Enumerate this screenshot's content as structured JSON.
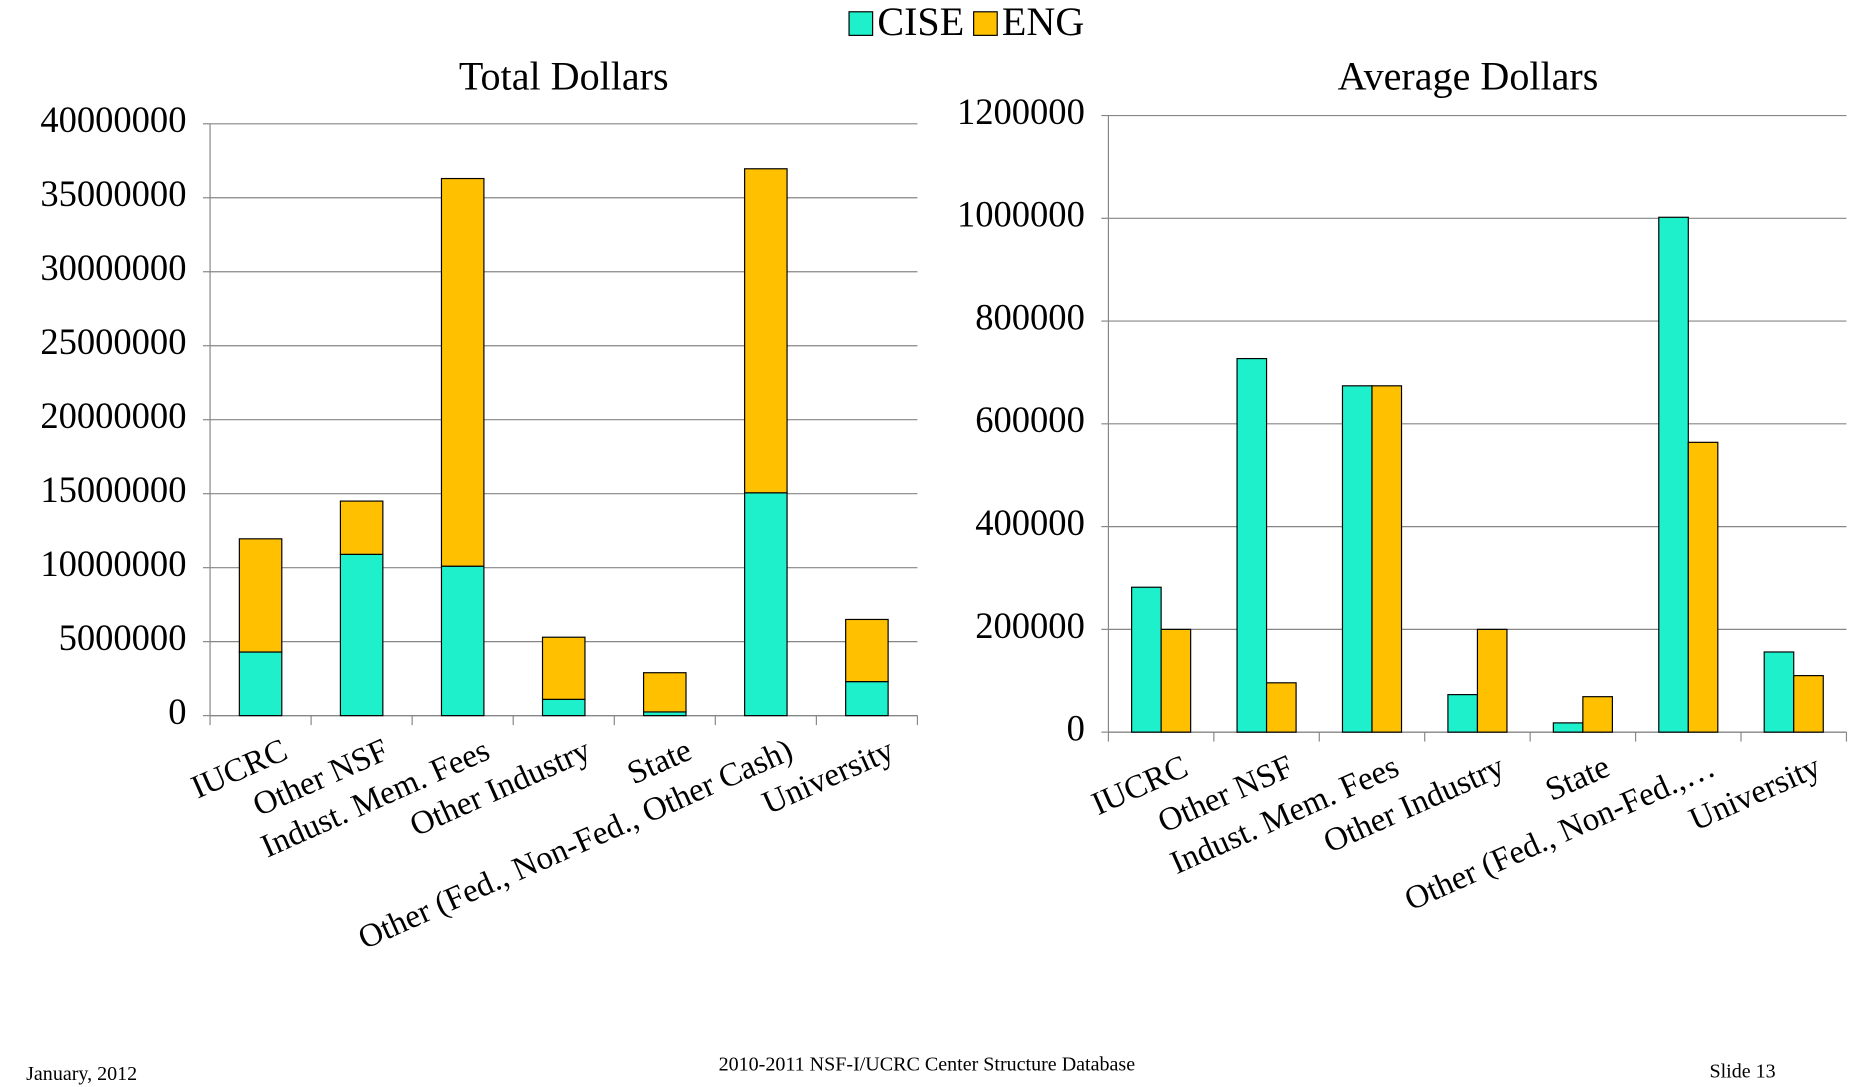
{
  "legend": {
    "items": [
      {
        "name": "CISE",
        "color": "#1ff0cc"
      },
      {
        "name": "ENG",
        "color": "#ffc000"
      }
    ]
  },
  "chart_data": [
    {
      "type": "bar",
      "stacked": true,
      "title": "Total Dollars",
      "categories": [
        "IUCRC",
        "Other NSF",
        "Indust. Mem. Fees",
        "Other Industry",
        "State",
        "Other (Fed., Non-Fed., Other Cash)",
        "University"
      ],
      "series": [
        {
          "color": "#1ff0cc",
          "values": [
            4300000,
            10900000,
            10100000,
            1100000,
            250000,
            15060000,
            2300000
          ]
        },
        {
          "color": "#ffc000",
          "values": [
            7650000,
            3600000,
            26200000,
            4200000,
            2650000,
            21900000,
            4200000
          ]
        }
      ],
      "ylim": [
        0,
        40000000
      ],
      "yticks": [
        0,
        5000000,
        10000000,
        15000000,
        20000000,
        25000000,
        30000000,
        35000000,
        40000000
      ],
      "grid": true
    },
    {
      "type": "bar",
      "stacked": false,
      "title": "Average Dollars",
      "categories": [
        "IUCRC",
        "Other NSF",
        "Indust. Mem. Fees",
        "Other Industry",
        "State",
        "Other (Fed., Non-Fed.,…",
        "University"
      ],
      "series": [
        {
          "color": "#1ff0cc",
          "values": [
            282000,
            727000,
            674000,
            73000,
            18000,
            1002000,
            156000
          ]
        },
        {
          "color": "#ffc000",
          "values": [
            200000,
            96000,
            674000,
            200000,
            69000,
            564000,
            110000
          ]
        }
      ],
      "ylim": [
        0,
        1200000
      ],
      "yticks": [
        0,
        200000,
        400000,
        600000,
        800000,
        1000000,
        1200000
      ],
      "grid": true
    }
  ],
  "footer": {
    "date": "January, 2012",
    "source": "2010-2011 NSF-I/UCRC Center Structure Database",
    "slide": "Slide 13"
  }
}
